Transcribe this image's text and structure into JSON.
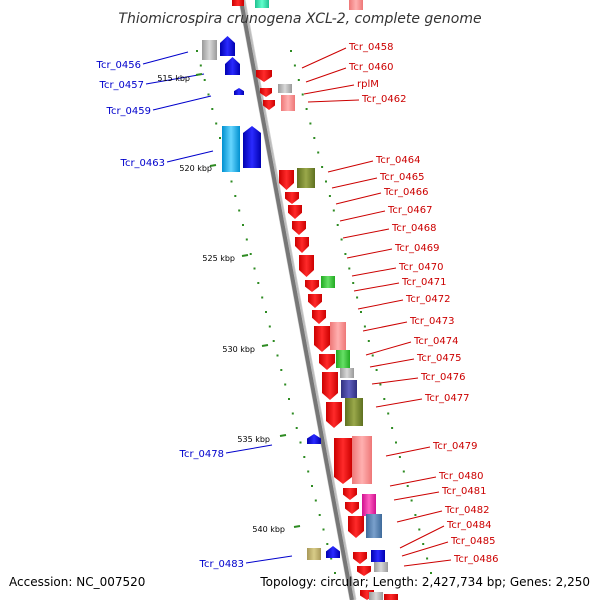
{
  "title": "Thiomicrospira crunogena XCL-2, complete genome",
  "accession_text": "Accession: NC_007520",
  "topology_text": "Topology: circular; Length: 2,427,734 bp; Genes: 2,250",
  "colors": {
    "backbone_dark": "#777777",
    "backbone_light": "#d8d8d8",
    "tick": "#2e8b22",
    "left_label": "#0000cc",
    "right_label": "#cc0000",
    "red_gene": "#ff0000",
    "blue_gene": "#0000ee"
  },
  "scale_ticks": [
    {
      "label": "515 kbp"
    },
    {
      "label": "520 kbp"
    },
    {
      "label": "525 kbp"
    },
    {
      "label": "530 kbp"
    },
    {
      "label": "535 kbp"
    },
    {
      "label": "540 kbp"
    }
  ],
  "left_labels": [
    {
      "name": "Tcr_0456"
    },
    {
      "name": "Tcr_0457"
    },
    {
      "name": "Tcr_0459"
    },
    {
      "name": "Tcr_0463"
    },
    {
      "name": "Tcr_0478"
    },
    {
      "name": "Tcr_0483"
    }
  ],
  "right_labels": [
    {
      "name": "Tcr_0458"
    },
    {
      "name": "Tcr_0460"
    },
    {
      "name": "rplM"
    },
    {
      "name": "Tcr_0462"
    },
    {
      "name": "Tcr_0464"
    },
    {
      "name": "Tcr_0465"
    },
    {
      "name": "Tcr_0466"
    },
    {
      "name": "Tcr_0467"
    },
    {
      "name": "Tcr_0468"
    },
    {
      "name": "Tcr_0469"
    },
    {
      "name": "Tcr_0470"
    },
    {
      "name": "Tcr_0471"
    },
    {
      "name": "Tcr_0472"
    },
    {
      "name": "Tcr_0473"
    },
    {
      "name": "Tcr_0474"
    },
    {
      "name": "Tcr_0475"
    },
    {
      "name": "Tcr_0476"
    },
    {
      "name": "Tcr_0477"
    },
    {
      "name": "Tcr_0479"
    },
    {
      "name": "Tcr_0480"
    },
    {
      "name": "Tcr_0481"
    },
    {
      "name": "Tcr_0482"
    },
    {
      "name": "Tcr_0484"
    },
    {
      "name": "Tcr_0485"
    },
    {
      "name": "Tcr_0486"
    }
  ]
}
